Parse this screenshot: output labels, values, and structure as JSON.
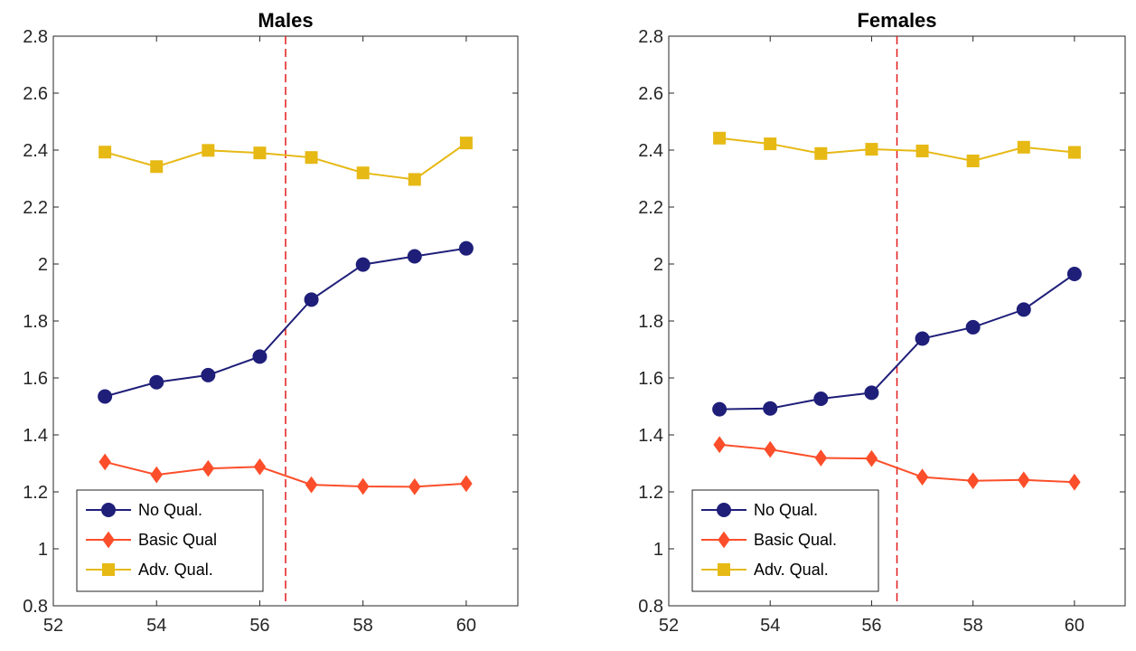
{
  "chart_data": [
    {
      "type": "line",
      "title": "Males",
      "xlabel": "",
      "ylabel": "",
      "xlim": [
        52,
        61
      ],
      "ylim": [
        0.8,
        2.8
      ],
      "xticks": [
        52,
        54,
        56,
        58,
        60
      ],
      "xtick_labels": [
        "52",
        "54",
        "56",
        "58",
        "60"
      ],
      "yticks": [
        0.8,
        1.0,
        1.2,
        1.4,
        1.6,
        1.8,
        2.0,
        2.2,
        2.4,
        2.6,
        2.8
      ],
      "ytick_labels": [
        "0.8",
        "1",
        "1.2",
        "1.4",
        "1.6",
        "1.8",
        "2",
        "2.2",
        "2.4",
        "2.6",
        "2.8"
      ],
      "grid": false,
      "legend_position": "bottom-left",
      "vline": {
        "x": 56.5,
        "color": "#e41a1c",
        "style": "dashed"
      },
      "x": [
        53,
        54,
        55,
        56,
        57,
        58,
        59,
        60
      ],
      "series": [
        {
          "name": "No Qual.",
          "color": "#1f1f7a",
          "marker": "circle",
          "values": [
            1.535,
            1.585,
            1.61,
            1.675,
            1.875,
            1.998,
            2.027,
            2.055
          ]
        },
        {
          "name": "Basic Qual",
          "color": "#fc4e2a",
          "marker": "diamond",
          "values": [
            1.305,
            1.26,
            1.282,
            1.288,
            1.225,
            1.219,
            1.218,
            1.229
          ]
        },
        {
          "name": "Adv. Qual.",
          "color": "#e6b915",
          "marker": "square",
          "values": [
            2.393,
            2.342,
            2.399,
            2.39,
            2.374,
            2.32,
            2.297,
            2.425
          ]
        }
      ]
    },
    {
      "type": "line",
      "title": "Females",
      "xlabel": "",
      "ylabel": "",
      "xlim": [
        52,
        61
      ],
      "ylim": [
        0.8,
        2.8
      ],
      "xticks": [
        52,
        54,
        56,
        58,
        60
      ],
      "xtick_labels": [
        "52",
        "54",
        "56",
        "58",
        "60"
      ],
      "yticks": [
        0.8,
        1.0,
        1.2,
        1.4,
        1.6,
        1.8,
        2.0,
        2.2,
        2.4,
        2.6,
        2.8
      ],
      "ytick_labels": [
        "0.8",
        "1",
        "1.2",
        "1.4",
        "1.6",
        "1.8",
        "2",
        "2.2",
        "2.4",
        "2.6",
        "2.8"
      ],
      "grid": false,
      "legend_position": "bottom-left",
      "vline": {
        "x": 56.5,
        "color": "#e41a1c",
        "style": "dashed"
      },
      "x": [
        53,
        54,
        55,
        56,
        57,
        58,
        59,
        60
      ],
      "series": [
        {
          "name": "No Qual.",
          "color": "#1f1f7a",
          "marker": "circle",
          "values": [
            1.49,
            1.493,
            1.527,
            1.548,
            1.738,
            1.778,
            1.84,
            1.965
          ]
        },
        {
          "name": "Basic Qual.",
          "color": "#fc4e2a",
          "marker": "diamond",
          "values": [
            1.366,
            1.349,
            1.319,
            1.317,
            1.252,
            1.239,
            1.242,
            1.234
          ]
        },
        {
          "name": "Adv. Qual.",
          "color": "#e6b915",
          "marker": "square",
          "values": [
            2.442,
            2.422,
            2.388,
            2.403,
            2.397,
            2.362,
            2.41,
            2.392
          ]
        }
      ]
    }
  ]
}
